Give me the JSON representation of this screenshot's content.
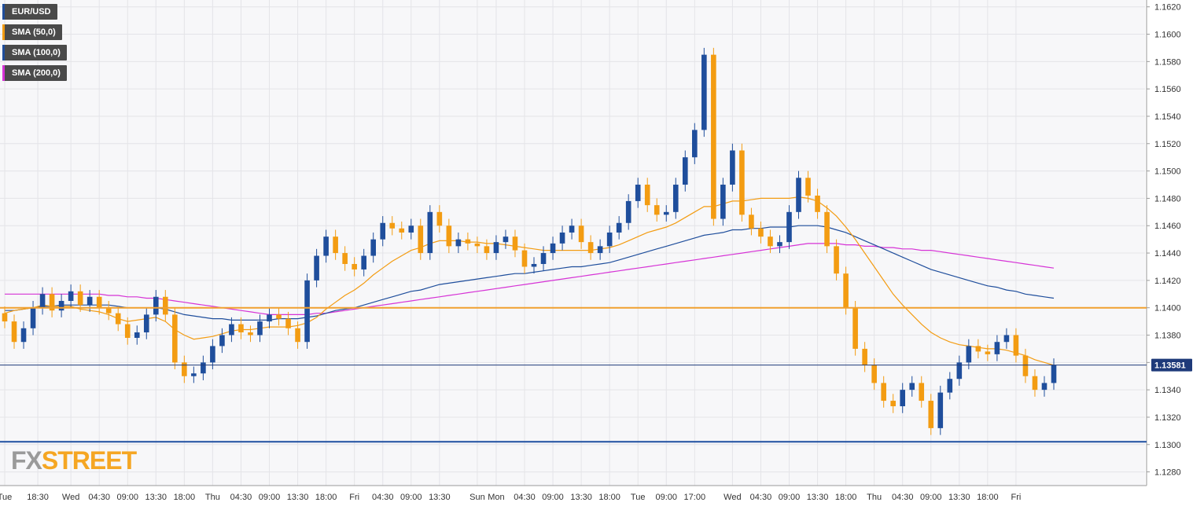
{
  "chart_data": {
    "type": "candlestick",
    "symbol": "EUR/USD",
    "last_price": "1.13581",
    "ylim": [
      1.127,
      1.1625
    ],
    "y_ticks": [
      "1.1620",
      "1.1600",
      "1.1580",
      "1.1560",
      "1.1540",
      "1.1520",
      "1.1500",
      "1.1480",
      "1.1460",
      "1.1440",
      "1.1420",
      "1.1400",
      "1.1380",
      "1.1360",
      "1.1340",
      "1.1320",
      "1.1300",
      "1.1280"
    ],
    "x_ticks": [
      "Tue",
      "18:30",
      "Wed",
      "04:30",
      "09:00",
      "13:30",
      "18:00",
      "Thu",
      "04:30",
      "09:00",
      "13:30",
      "18:00",
      "Fri",
      "04:30",
      "09:00",
      "13:30",
      "Sun",
      "Mon",
      "04:30",
      "09:00",
      "13:30",
      "18:00",
      "Tue",
      "09:00",
      "17:00",
      "Wed",
      "04:30",
      "09:00",
      "13:30",
      "18:00",
      "Thu",
      "04:30",
      "09:00",
      "13:30",
      "18:00",
      "Fri"
    ],
    "x_tick_index": [
      0,
      3.5,
      7,
      10,
      13,
      16,
      19,
      22,
      25,
      28,
      31,
      34,
      37,
      40,
      43,
      46,
      50,
      52,
      55,
      58,
      61,
      64,
      67,
      70,
      73,
      77,
      80,
      83,
      86,
      89,
      92,
      95,
      98,
      101,
      104,
      107
    ],
    "horizontal_levels": [
      {
        "value": 1.14,
        "color": "#f0a030"
      },
      {
        "value": 1.1302,
        "color": "#1e4fa0"
      },
      {
        "value": 1.13581,
        "color": "#1e3a7a"
      }
    ],
    "legend": [
      {
        "label": "EUR/USD",
        "color": "#1f4e9c"
      },
      {
        "label": "SMA (50,0)",
        "color": "#f39c12"
      },
      {
        "label": "SMA (100,0)",
        "color": "#1f4e9c"
      },
      {
        "label": "SMA (200,0)",
        "color": "#d633d6"
      }
    ],
    "colors": {
      "bull": "#1f4e9c",
      "bear": "#f39c12",
      "sma50": "#f39c12",
      "sma100": "#1f4e9c",
      "sma200": "#d633d6"
    },
    "close": [
      1.139,
      1.1375,
      1.1385,
      1.14,
      1.141,
      1.1398,
      1.1405,
      1.1412,
      1.1402,
      1.1408,
      1.14,
      1.1396,
      1.1388,
      1.1378,
      1.1382,
      1.1395,
      1.1408,
      1.1395,
      1.136,
      1.135,
      1.1352,
      1.136,
      1.1372,
      1.138,
      1.1388,
      1.1382,
      1.138,
      1.139,
      1.1395,
      1.1392,
      1.1385,
      1.1375,
      1.142,
      1.1438,
      1.1452,
      1.144,
      1.1432,
      1.1428,
      1.1438,
      1.145,
      1.1462,
      1.1458,
      1.1455,
      1.146,
      1.144,
      1.147,
      1.146,
      1.1445,
      1.145,
      1.1447,
      1.1445,
      1.144,
      1.1448,
      1.1452,
      1.1442,
      1.143,
      1.1432,
      1.144,
      1.1447,
      1.1455,
      1.146,
      1.1448,
      1.144,
      1.1445,
      1.1455,
      1.1462,
      1.1478,
      1.149,
      1.1475,
      1.1468,
      1.147,
      1.149,
      1.151,
      1.153,
      1.1585,
      1.1465,
      1.149,
      1.1515,
      1.1468,
      1.1458,
      1.1452,
      1.1445,
      1.1448,
      1.147,
      1.1495,
      1.1482,
      1.147,
      1.1445,
      1.1425,
      1.14,
      1.137,
      1.1358,
      1.1345,
      1.1332,
      1.1328,
      1.134,
      1.1345,
      1.1332,
      1.1312,
      1.1338,
      1.1348,
      1.136,
      1.1372,
      1.1368,
      1.1366,
      1.1375,
      1.138,
      1.1365,
      1.135,
      1.134,
      1.1345,
      1.1358
    ],
    "sma50": [
      1.1396,
      1.1398,
      1.1399,
      1.14,
      1.1402,
      1.1401,
      1.1401,
      1.1401,
      1.1399,
      1.1398,
      1.1397,
      1.1395,
      1.1392,
      1.139,
      1.1391,
      1.1392,
      1.1393,
      1.139,
      1.1384,
      1.138,
      1.1377,
      1.1378,
      1.1379,
      1.1381,
      1.1383,
      1.1384,
      1.1384,
      1.1385,
      1.1386,
      1.1386,
      1.1386,
      1.1387,
      1.1389,
      1.1393,
      1.1399,
      1.1404,
      1.1409,
      1.1413,
      1.1418,
      1.1424,
      1.1429,
      1.1434,
      1.1438,
      1.1442,
      1.1444,
      1.1447,
      1.1449,
      1.1449,
      1.1449,
      1.1448,
      1.1448,
      1.1447,
      1.1447,
      1.1446,
      1.1445,
      1.1444,
      1.1443,
      1.1442,
      1.1442,
      1.1442,
      1.1442,
      1.1442,
      1.1442,
      1.1443,
      1.1444,
      1.1446,
      1.1449,
      1.1452,
      1.1455,
      1.1457,
      1.1459,
      1.1462,
      1.1466,
      1.147,
      1.1474,
      1.1474,
      1.1476,
      1.1478,
      1.1478,
      1.1479,
      1.148,
      1.148,
      1.148,
      1.148,
      1.1481,
      1.148,
      1.1478,
      1.1473,
      1.1467,
      1.1459,
      1.145,
      1.144,
      1.143,
      1.142,
      1.141,
      1.1402,
      1.1395,
      1.1388,
      1.1382,
      1.1378,
      1.1375,
      1.1373,
      1.1372,
      1.1371,
      1.137,
      1.137,
      1.1369,
      1.1367,
      1.1365,
      1.1362,
      1.136,
      1.1358
    ],
    "sma100": [
      1.1398,
      1.1398,
      1.1399,
      1.14,
      1.1401,
      1.1401,
      1.1402,
      1.1402,
      1.1402,
      1.1402,
      1.1402,
      1.1402,
      1.1401,
      1.14,
      1.14,
      1.14,
      1.14,
      1.1399,
      1.1397,
      1.1395,
      1.1394,
      1.1393,
      1.1392,
      1.1392,
      1.1391,
      1.1391,
      1.1391,
      1.1391,
      1.1391,
      1.1392,
      1.1392,
      1.1392,
      1.1393,
      1.1394,
      1.1396,
      1.1398,
      1.1399,
      1.14,
      1.1402,
      1.1404,
      1.1406,
      1.1408,
      1.141,
      1.1412,
      1.1413,
      1.1415,
      1.1417,
      1.1418,
      1.1419,
      1.142,
      1.1421,
      1.1422,
      1.1423,
      1.1424,
      1.1425,
      1.1425,
      1.1426,
      1.1427,
      1.1428,
      1.1429,
      1.143,
      1.143,
      1.1431,
      1.1432,
      1.1433,
      1.1435,
      1.1437,
      1.1439,
      1.1441,
      1.1443,
      1.1445,
      1.1447,
      1.1449,
      1.1451,
      1.1453,
      1.1454,
      1.1455,
      1.1457,
      1.1457,
      1.1458,
      1.1458,
      1.1459,
      1.1459,
      1.1459,
      1.146,
      1.146,
      1.146,
      1.1459,
      1.1457,
      1.1455,
      1.1452,
      1.1449,
      1.1446,
      1.1443,
      1.144,
      1.1437,
      1.1434,
      1.1431,
      1.1428,
      1.1426,
      1.1424,
      1.1422,
      1.142,
      1.1418,
      1.1416,
      1.1415,
      1.1413,
      1.1412,
      1.141,
      1.1409,
      1.1408,
      1.1407
    ],
    "sma200": [
      1.141,
      1.141,
      1.141,
      1.141,
      1.141,
      1.141,
      1.141,
      1.141,
      1.141,
      1.141,
      1.141,
      1.1409,
      1.1409,
      1.1408,
      1.1408,
      1.1407,
      1.1407,
      1.1406,
      1.1405,
      1.1404,
      1.1403,
      1.1402,
      1.1401,
      1.14,
      1.1399,
      1.1398,
      1.1397,
      1.1396,
      1.1395,
      1.1395,
      1.1395,
      1.1395,
      1.1395,
      1.1396,
      1.1396,
      1.1397,
      1.1398,
      1.1399,
      1.14,
      1.1401,
      1.1402,
      1.1403,
      1.1404,
      1.1405,
      1.1406,
      1.1407,
      1.1408,
      1.1409,
      1.141,
      1.1411,
      1.1412,
      1.1413,
      1.1414,
      1.1415,
      1.1416,
      1.1417,
      1.1418,
      1.1419,
      1.142,
      1.1421,
      1.1422,
      1.1423,
      1.1424,
      1.1425,
      1.1426,
      1.1427,
      1.1428,
      1.1429,
      1.143,
      1.1431,
      1.1432,
      1.1433,
      1.1434,
      1.1435,
      1.1436,
      1.1437,
      1.1438,
      1.1439,
      1.144,
      1.1441,
      1.1442,
      1.1443,
      1.1444,
      1.1445,
      1.1446,
      1.1447,
      1.1447,
      1.1447,
      1.1447,
      1.1446,
      1.1446,
      1.1445,
      1.1445,
      1.1444,
      1.1444,
      1.1443,
      1.1443,
      1.1442,
      1.1442,
      1.1441,
      1.144,
      1.1439,
      1.1438,
      1.1437,
      1.1436,
      1.1435,
      1.1434,
      1.1433,
      1.1432,
      1.1431,
      1.143,
      1.1429
    ]
  },
  "logo": {
    "fx": "FX",
    "street": "STREET"
  }
}
